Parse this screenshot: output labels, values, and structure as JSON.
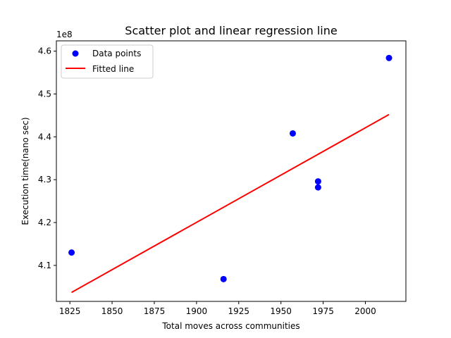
{
  "chart_data": {
    "type": "scatter",
    "title": "Scatter plot and linear regression line",
    "xlabel": "Total moves across communities",
    "ylabel": "Execution time(nano sec)",
    "y_offset_label": "1e8",
    "xlim": [
      1817,
      2024
    ],
    "ylim": [
      4.016,
      4.624
    ],
    "x_ticks": [
      1825,
      1850,
      1875,
      1900,
      1925,
      1950,
      1975,
      2000
    ],
    "y_ticks": [
      4.1,
      4.2,
      4.3,
      4.4,
      4.5,
      4.6
    ],
    "x_tick_labels": [
      "1825",
      "1850",
      "1875",
      "1900",
      "1925",
      "1950",
      "1975",
      "2000"
    ],
    "y_tick_labels": [
      "4.1",
      "4.2",
      "4.3",
      "4.4",
      "4.5",
      "4.6"
    ],
    "grid": false,
    "legend_position": "upper-left",
    "series": [
      {
        "name": "Data points",
        "kind": "scatter",
        "color": "#0000ff",
        "points": [
          {
            "x": 1826,
            "y": 4.13
          },
          {
            "x": 1916,
            "y": 4.068
          },
          {
            "x": 1957,
            "y": 4.408
          },
          {
            "x": 1972,
            "y": 4.296
          },
          {
            "x": 1972,
            "y": 4.282
          },
          {
            "x": 2014,
            "y": 4.584
          }
        ]
      },
      {
        "name": "Fitted line",
        "kind": "line",
        "color": "#ff0000",
        "points": [
          {
            "x": 1826,
            "y": 4.037
          },
          {
            "x": 2014,
            "y": 4.452
          }
        ]
      }
    ]
  }
}
